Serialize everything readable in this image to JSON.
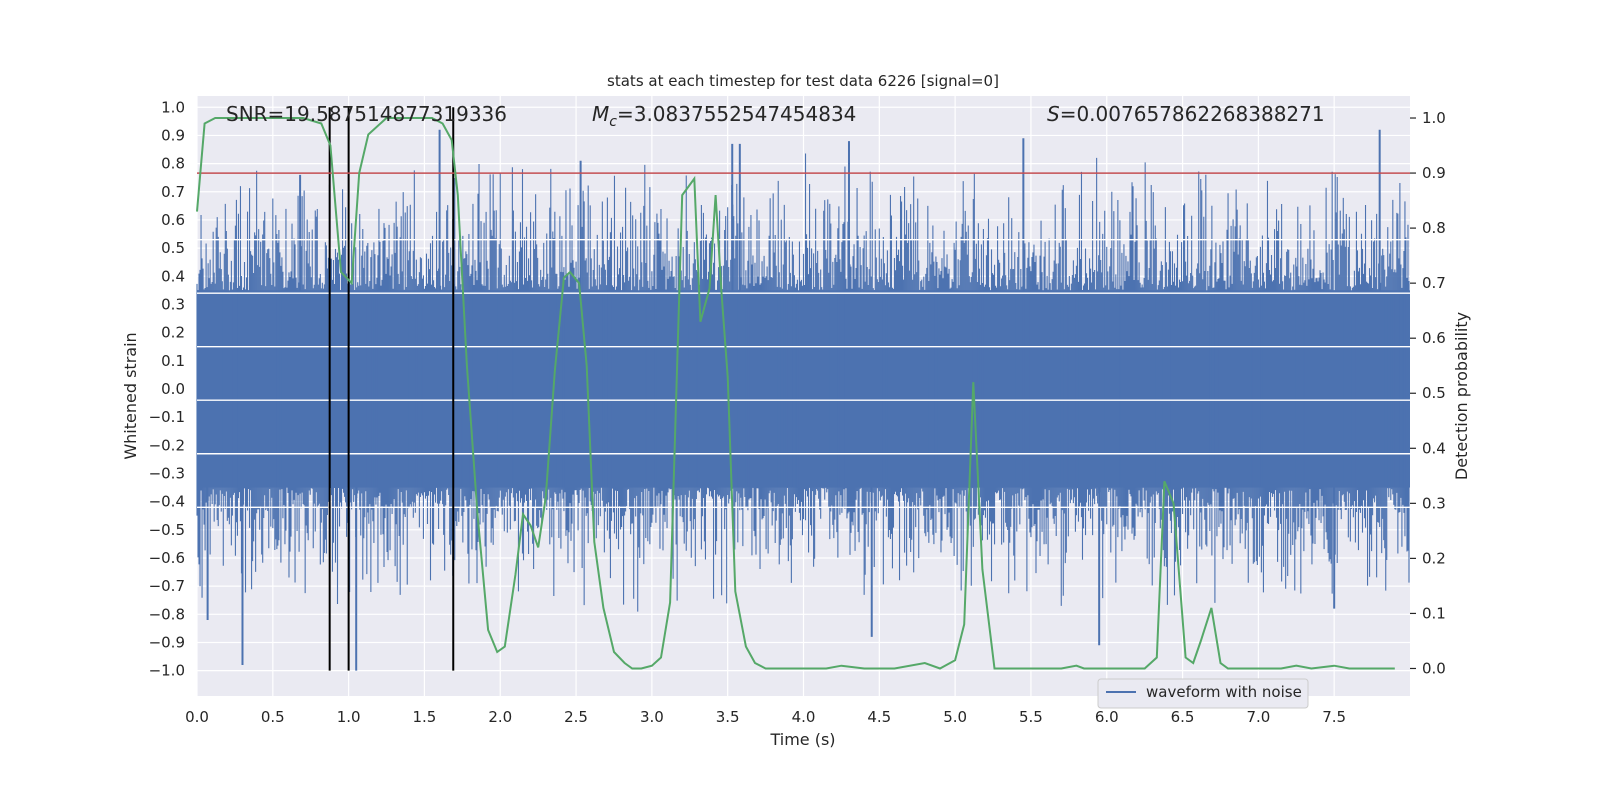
{
  "chart_data": {
    "type": "line",
    "title": "stats at each timestep for test data 6226 [signal=0]",
    "xlabel": "Time (s)",
    "ylabel_left": "Whitened strain",
    "ylabel_right": "Detection probability",
    "xlim": [
      0.0,
      8.0
    ],
    "ylim_left": [
      -1.09,
      1.04
    ],
    "ylim_right": [
      -0.05,
      1.04
    ],
    "x_ticks": [
      "0.0",
      "0.5",
      "1.0",
      "1.5",
      "2.0",
      "2.5",
      "3.0",
      "3.5",
      "4.0",
      "4.5",
      "5.0",
      "5.5",
      "6.0",
      "6.5",
      "7.0",
      "7.5"
    ],
    "x_tick_values": [
      0.0,
      0.5,
      1.0,
      1.5,
      2.0,
      2.5,
      3.0,
      3.5,
      4.0,
      4.5,
      5.0,
      5.5,
      6.0,
      6.5,
      7.0,
      7.5
    ],
    "y_left_ticks": [
      "1.0",
      "0.9",
      "0.8",
      "0.7",
      "0.6",
      "0.5",
      "0.4",
      "0.3",
      "0.2",
      "0.1",
      "0.0",
      "−0.1",
      "−0.2",
      "−0.3",
      "−0.4",
      "−0.5",
      "−0.6",
      "−0.7",
      "−0.8",
      "−0.9",
      "−1.0"
    ],
    "y_left_tick_values": [
      1.0,
      0.9,
      0.8,
      0.7,
      0.6,
      0.5,
      0.4,
      0.3,
      0.2,
      0.1,
      0.0,
      -0.1,
      -0.2,
      -0.3,
      -0.4,
      -0.5,
      -0.6,
      -0.7,
      -0.8,
      -0.9,
      -1.0
    ],
    "y_right_ticks": [
      "1.0",
      "0.9",
      "0.8",
      "0.7",
      "0.6",
      "0.5",
      "0.4",
      "0.3",
      "0.2",
      "0.1",
      "0.0"
    ],
    "y_right_tick_values": [
      1.0,
      0.9,
      0.8,
      0.7,
      0.6,
      0.5,
      0.4,
      0.3,
      0.2,
      0.1,
      0.0
    ],
    "annotations": {
      "snr": "SNR=19.587514877319336",
      "mc_symbol": "M",
      "mc_subscript": "c",
      "mc_value": "=3.0837552547454834",
      "s_symbol": "S",
      "s_value": "=0.007657862268388271"
    },
    "threshold": {
      "value": 0.9,
      "axis": "right",
      "color": "#c44e52"
    },
    "vertical_markers": [
      0.875,
      1.0,
      1.69
    ],
    "series": [
      {
        "name": "waveform with noise",
        "axis": "left",
        "color": "#4c72b0",
        "kind": "noise",
        "core_amplitude": 0.35,
        "typical_peak": 0.6,
        "notable_peaks": [
          {
            "x": 0.07,
            "y": -0.82
          },
          {
            "x": 0.3,
            "y": -0.98
          },
          {
            "x": 0.68,
            "y": 0.76
          },
          {
            "x": 1.05,
            "y": -1.0
          },
          {
            "x": 1.6,
            "y": 0.92
          },
          {
            "x": 2.53,
            "y": 0.81
          },
          {
            "x": 3.53,
            "y": 0.87
          },
          {
            "x": 3.58,
            "y": 0.87
          },
          {
            "x": 4.3,
            "y": 0.88
          },
          {
            "x": 4.45,
            "y": -0.88
          },
          {
            "x": 5.45,
            "y": 0.89
          },
          {
            "x": 5.95,
            "y": -0.91
          },
          {
            "x": 7.5,
            "y": -0.78
          },
          {
            "x": 7.8,
            "y": 0.92
          }
        ]
      },
      {
        "name": "detection probability",
        "axis": "right",
        "color": "#55a868",
        "x": [
          0.0,
          0.05,
          0.12,
          0.3,
          0.5,
          0.7,
          0.82,
          0.88,
          0.95,
          1.02,
          1.07,
          1.13,
          1.25,
          1.4,
          1.55,
          1.62,
          1.68,
          1.72,
          1.78,
          1.85,
          1.92,
          1.98,
          2.03,
          2.1,
          2.15,
          2.2,
          2.25,
          2.3,
          2.36,
          2.42,
          2.46,
          2.52,
          2.57,
          2.62,
          2.68,
          2.75,
          2.82,
          2.87,
          2.93,
          3.0,
          3.06,
          3.12,
          3.2,
          3.28,
          3.32,
          3.38,
          3.42,
          3.46,
          3.5,
          3.55,
          3.62,
          3.68,
          3.75,
          3.85,
          4.0,
          4.15,
          4.25,
          4.4,
          4.6,
          4.8,
          4.9,
          5.0,
          5.06,
          5.12,
          5.18,
          5.26,
          5.35,
          5.5,
          5.7,
          5.8,
          5.85,
          5.95,
          6.05,
          6.15,
          6.25,
          6.33,
          6.38,
          6.44,
          6.52,
          6.57,
          6.62,
          6.69,
          6.75,
          6.8,
          6.9,
          7.0,
          7.15,
          7.25,
          7.35,
          7.5,
          7.6,
          7.75,
          7.9
        ],
        "y": [
          0.83,
          0.99,
          1.0,
          1.0,
          1.0,
          1.0,
          0.99,
          0.95,
          0.72,
          0.7,
          0.9,
          0.97,
          1.0,
          1.0,
          1.0,
          0.99,
          0.96,
          0.86,
          0.55,
          0.28,
          0.07,
          0.03,
          0.04,
          0.17,
          0.28,
          0.26,
          0.22,
          0.31,
          0.54,
          0.71,
          0.72,
          0.7,
          0.55,
          0.23,
          0.11,
          0.03,
          0.01,
          0.0,
          0.0,
          0.005,
          0.02,
          0.12,
          0.86,
          0.89,
          0.63,
          0.69,
          0.86,
          0.68,
          0.53,
          0.14,
          0.04,
          0.01,
          0.0,
          0.0,
          0.0,
          0.0,
          0.005,
          0.0,
          0.0,
          0.01,
          0.0,
          0.015,
          0.08,
          0.52,
          0.18,
          0.0,
          0.0,
          0.0,
          0.0,
          0.005,
          0.0,
          0.0,
          0.0,
          0.0,
          0.0,
          0.02,
          0.34,
          0.3,
          0.02,
          0.01,
          0.05,
          0.11,
          0.01,
          0.0,
          0.0,
          0.0,
          0.0,
          0.005,
          0.0,
          0.005,
          0.0,
          0.0,
          0.0
        ]
      }
    ],
    "legend": {
      "label": "waveform with noise",
      "placement": "lower-right"
    },
    "grid": true
  }
}
